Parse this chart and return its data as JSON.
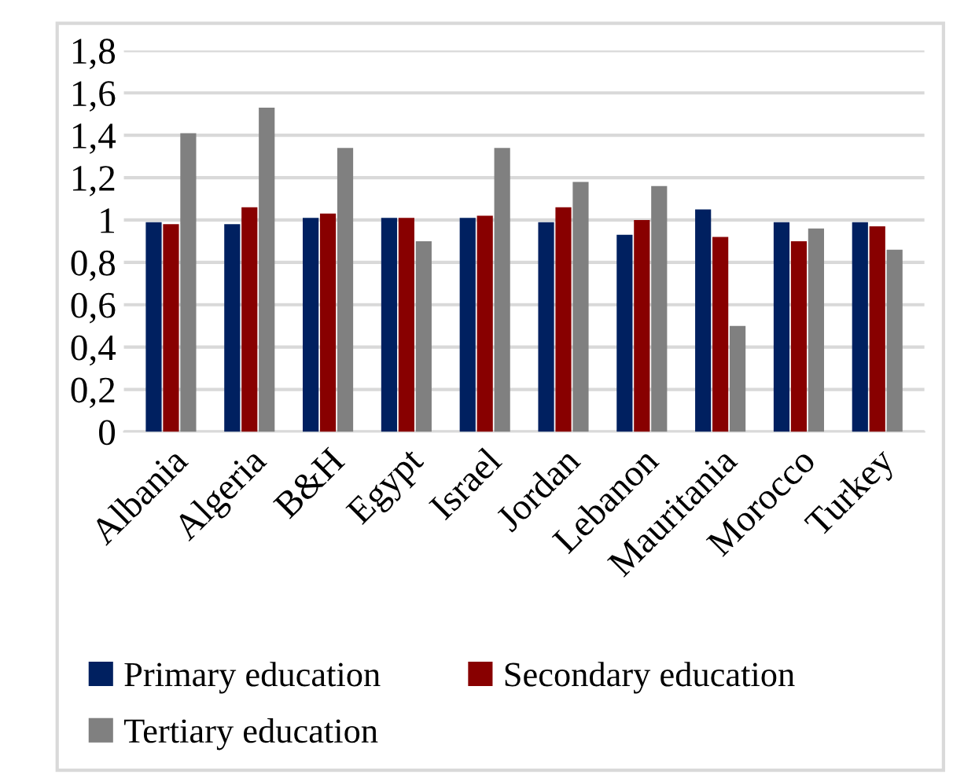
{
  "chart_data": {
    "type": "bar",
    "categories": [
      "Albania",
      "Algeria",
      "B&H",
      "Egypt",
      "Israel",
      "Jordan",
      "Lebanon",
      "Mauritania",
      "Morocco",
      "Turkey"
    ],
    "series": [
      {
        "name": "Primary education",
        "color": "#002060",
        "values": [
          0.99,
          0.98,
          1.01,
          1.01,
          1.01,
          0.99,
          0.93,
          1.05,
          0.99,
          0.99
        ]
      },
      {
        "name": "Secondary education",
        "color": "#880000",
        "values": [
          0.98,
          1.06,
          1.03,
          1.01,
          1.02,
          1.06,
          1.0,
          0.92,
          0.9,
          0.97
        ]
      },
      {
        "name": "Tertiary education",
        "color": "#808080",
        "values": [
          1.41,
          1.53,
          1.34,
          0.9,
          1.34,
          1.18,
          1.16,
          0.5,
          0.96,
          0.86
        ]
      }
    ],
    "ylim": [
      0,
      1.8
    ],
    "yticks": [
      0,
      {
        "value": 0.2,
        "label": "0,2"
      },
      {
        "value": 0.4,
        "label": "0,4"
      },
      {
        "value": 0.6,
        "label": "0,6"
      },
      {
        "value": 0.8,
        "label": "0,8"
      },
      1,
      {
        "value": 1.2,
        "label": "1,2"
      },
      {
        "value": 1.4,
        "label": "1,4"
      },
      {
        "value": 1.6,
        "label": "1,6"
      },
      {
        "value": 1.8,
        "label": "1,8"
      }
    ],
    "grid": "y",
    "legend": "bottom"
  }
}
